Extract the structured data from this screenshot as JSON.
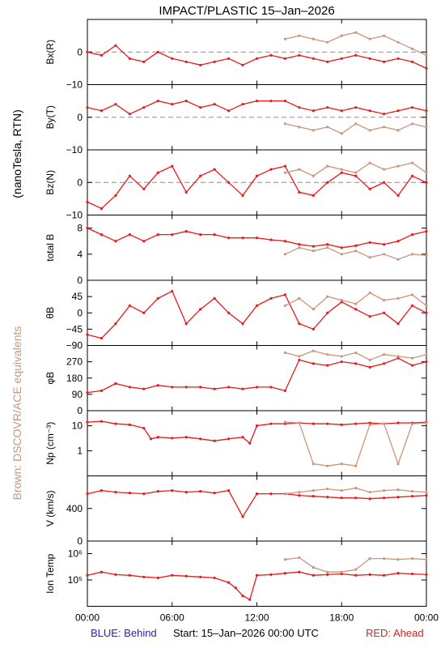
{
  "header": {
    "title": "IMPACT/PLASTIC   15–Jan–2026"
  },
  "side_labels": {
    "units": "(nanoTesla, RTN)",
    "equivalents": "Brown: DSCOVR/ACE equivalents"
  },
  "footer": {
    "behind": "BLUE: Behind",
    "start": "Start: 15–Jan–2026 00:00 UTC",
    "ahead": "RED: Ahead"
  },
  "colors": {
    "ahead": "#e8191c",
    "equivalent": "#c8967d",
    "behind": "#1f1fc8",
    "reference_line": "#8c8c8c"
  },
  "chart_data": {
    "type": "scatter",
    "x_axis": {
      "label": "",
      "range_hours": [
        0,
        24
      ],
      "tick_hours": [
        0,
        6,
        12,
        18,
        24
      ],
      "tick_labels": [
        "00:00",
        "06:00",
        "12:00",
        "18:00",
        "00:00"
      ]
    },
    "panels": [
      {
        "name": "Bx",
        "ylabel": "Bx(R)",
        "ylim": [
          -10,
          10
        ],
        "scale": "linear",
        "ticks": [
          -10,
          0
        ],
        "tick_labels": [
          "−10",
          "0"
        ],
        "zero_line": true,
        "series": [
          {
            "color_key": "ahead",
            "x": [
              0,
              1,
              2,
              3,
              4,
              5,
              6,
              7,
              8,
              9,
              10,
              11,
              12,
              13,
              14,
              15,
              16,
              17,
              18,
              19,
              20,
              21,
              22,
              23,
              24
            ],
            "y": [
              0,
              -1,
              2,
              -2,
              -3,
              0,
              -2,
              -3,
              -4,
              -3,
              -2,
              -4,
              -2,
              -1,
              -2,
              -1,
              -2,
              -3,
              -2,
              -1,
              -2,
              -3,
              -2,
              -3,
              -5
            ]
          },
          {
            "color_key": "equivalent",
            "x": [
              14,
              15,
              16,
              17,
              18,
              19,
              20,
              21,
              22,
              23,
              24
            ],
            "y": [
              4,
              5,
              4,
              3,
              5,
              6,
              4,
              5,
              3,
              1,
              -1
            ]
          }
        ]
      },
      {
        "name": "By",
        "ylabel": "By(T)",
        "ylim": [
          -10,
          10
        ],
        "scale": "linear",
        "ticks": [
          -10,
          0
        ],
        "tick_labels": [
          "−10",
          "0"
        ],
        "zero_line": true,
        "series": [
          {
            "color_key": "ahead",
            "x": [
              0,
              1,
              2,
              3,
              4,
              5,
              6,
              7,
              8,
              9,
              10,
              11,
              12,
              13,
              14,
              15,
              16,
              17,
              18,
              19,
              20,
              21,
              22,
              23,
              24
            ],
            "y": [
              3,
              2,
              4,
              1,
              3,
              5,
              4,
              5,
              3,
              4,
              2,
              4,
              5,
              5,
              5,
              3,
              2,
              3,
              2,
              3,
              2,
              1,
              2,
              3,
              2
            ]
          },
          {
            "color_key": "equivalent",
            "x": [
              14,
              15,
              16,
              17,
              18,
              19,
              20,
              21,
              22,
              23,
              24
            ],
            "y": [
              -2,
              -3,
              -4,
              -3,
              -5,
              -2,
              -4,
              -3,
              -4,
              -2,
              -3
            ]
          }
        ]
      },
      {
        "name": "Bz",
        "ylabel": "Bz(N)",
        "ylim": [
          -10,
          10
        ],
        "scale": "linear",
        "ticks": [
          -10,
          0
        ],
        "tick_labels": [
          "−10",
          "0"
        ],
        "zero_line": true,
        "series": [
          {
            "color_key": "ahead",
            "x": [
              0,
              1,
              2,
              3,
              4,
              5,
              6,
              7,
              8,
              9,
              10,
              11,
              12,
              13,
              14,
              15,
              16,
              17,
              18,
              19,
              20,
              21,
              22,
              23,
              24
            ],
            "y": [
              -6,
              -8,
              -4,
              2,
              -2,
              3,
              5,
              -3,
              2,
              4,
              0,
              -4,
              2,
              4,
              5,
              -3,
              -4,
              0,
              3,
              2,
              -2,
              0,
              -4,
              2,
              0
            ]
          },
          {
            "color_key": "equivalent",
            "x": [
              14,
              15,
              16,
              17,
              18,
              19,
              20,
              21,
              22,
              23,
              24
            ],
            "y": [
              3,
              4,
              2,
              5,
              4,
              3,
              6,
              4,
              5,
              6,
              3
            ]
          }
        ]
      },
      {
        "name": "totalB",
        "ylabel": "total B",
        "ylim": [
          0,
          10
        ],
        "scale": "linear",
        "ticks": [
          0,
          4,
          8
        ],
        "tick_labels": [
          "0",
          "4",
          "8"
        ],
        "zero_line": false,
        "series": [
          {
            "color_key": "ahead",
            "x": [
              0,
              1,
              2,
              3,
              4,
              5,
              6,
              7,
              8,
              9,
              10,
              11,
              12,
              13,
              14,
              15,
              16,
              17,
              18,
              19,
              20,
              21,
              22,
              23,
              24
            ],
            "y": [
              8,
              7,
              6,
              7,
              6,
              7,
              7,
              7.5,
              7,
              7,
              6.5,
              6.5,
              6.5,
              6.2,
              6,
              5.5,
              5.2,
              5.5,
              5,
              5.3,
              5.8,
              5.5,
              6,
              7,
              7.5
            ]
          },
          {
            "color_key": "equivalent",
            "x": [
              14,
              15,
              16,
              17,
              18,
              19,
              20,
              21,
              22,
              23,
              24
            ],
            "y": [
              4,
              5,
              4.5,
              5,
              4,
              4.5,
              3.5,
              4,
              3.2,
              4,
              3.8
            ]
          }
        ]
      },
      {
        "name": "thetaB",
        "ylabel": "θB",
        "ylim": [
          -90,
          90
        ],
        "scale": "linear",
        "ticks": [
          -90,
          -45,
          0,
          45
        ],
        "tick_labels": [
          "−90",
          "−45",
          "0",
          "45"
        ],
        "zero_line": false,
        "series": [
          {
            "color_key": "ahead",
            "x": [
              0,
              1,
              2,
              3,
              4,
              5,
              6,
              7,
              8,
              9,
              10,
              11,
              12,
              13,
              14,
              15,
              16,
              17,
              18,
              19,
              20,
              21,
              22,
              23,
              24
            ],
            "y": [
              -60,
              -70,
              -30,
              20,
              0,
              40,
              60,
              -30,
              10,
              40,
              0,
              -30,
              20,
              40,
              50,
              -30,
              -45,
              0,
              30,
              10,
              -10,
              0,
              -30,
              20,
              0
            ]
          },
          {
            "color_key": "equivalent",
            "x": [
              14,
              15,
              16,
              17,
              18,
              19,
              20,
              21,
              22,
              23,
              24
            ],
            "y": [
              20,
              40,
              10,
              45,
              35,
              25,
              55,
              35,
              40,
              50,
              20
            ]
          }
        ]
      },
      {
        "name": "phiB",
        "ylabel": "φB",
        "ylim": [
          0,
          360
        ],
        "scale": "linear",
        "ticks": [
          0,
          90,
          180,
          270
        ],
        "tick_labels": [
          "0",
          "90",
          "180",
          "270"
        ],
        "zero_line": false,
        "series": [
          {
            "color_key": "ahead",
            "x": [
              0,
              1,
              2,
              3,
              4,
              5,
              6,
              7,
              8,
              9,
              10,
              11,
              12,
              13,
              14,
              15,
              16,
              17,
              18,
              19,
              20,
              21,
              22,
              23,
              24
            ],
            "y": [
              100,
              110,
              150,
              130,
              120,
              140,
              130,
              130,
              130,
              120,
              130,
              120,
              130,
              130,
              110,
              280,
              260,
              250,
              270,
              260,
              240,
              260,
              290,
              250,
              270
            ]
          },
          {
            "color_key": "equivalent",
            "x": [
              14,
              15,
              16,
              17,
              18,
              19,
              20,
              21,
              22,
              23,
              24
            ],
            "y": [
              320,
              300,
              330,
              310,
              300,
              320,
              280,
              310,
              300,
              290,
              310
            ]
          }
        ]
      },
      {
        "name": "Np",
        "ylabel": "Np (cm⁻³)",
        "ylim": [
          0.1,
          40
        ],
        "scale": "log",
        "ticks": [
          1,
          10
        ],
        "tick_labels": [
          "1",
          "10"
        ],
        "zero_line": false,
        "series": [
          {
            "color_key": "ahead",
            "x": [
              0,
              1,
              2,
              3,
              4,
              4.5,
              5,
              6,
              7,
              8,
              9,
              10,
              11,
              11.5,
              12,
              13,
              14,
              15,
              16,
              17,
              18,
              19,
              20,
              21,
              22,
              23,
              24
            ],
            "y": [
              14,
              15,
              12,
              11,
              8,
              3,
              3.5,
              3.2,
              3.5,
              3,
              2.5,
              3,
              3.5,
              2,
              10,
              12,
              12,
              13,
              12,
              12,
              11,
              12,
              13,
              12,
              13,
              13,
              14
            ]
          },
          {
            "color_key": "equivalent",
            "x": [
              14,
              15,
              16,
              17,
              18,
              19,
              20,
              21,
              22,
              23,
              24
            ],
            "y": [
              14,
              13,
              0.3,
              0.25,
              0.3,
              0.25,
              11,
              12,
              0.3,
              12,
              13
            ]
          }
        ]
      },
      {
        "name": "V",
        "ylabel": "V (km/s)",
        "ylim": [
          0,
          800
        ],
        "scale": "linear",
        "ticks": [
          0,
          400
        ],
        "tick_labels": [
          "0",
          "400"
        ],
        "zero_line": false,
        "series": [
          {
            "color_key": "ahead",
            "x": [
              0,
              1,
              2,
              3,
              4,
              5,
              6,
              7,
              8,
              9,
              10,
              11,
              12,
              13,
              14,
              15,
              16,
              17,
              18,
              19,
              20,
              21,
              22,
              23,
              24
            ],
            "y": [
              580,
              620,
              600,
              590,
              580,
              610,
              620,
              600,
              610,
              590,
              620,
              300,
              580,
              580,
              580,
              560,
              550,
              540,
              530,
              530,
              520,
              530,
              540,
              550,
              560
            ]
          },
          {
            "color_key": "equivalent",
            "x": [
              14,
              15,
              16,
              17,
              18,
              19,
              20,
              21,
              22,
              23,
              24
            ],
            "y": [
              580,
              600,
              620,
              640,
              620,
              650,
              600,
              620,
              630,
              610,
              600
            ]
          }
        ]
      },
      {
        "name": "IonTemp",
        "ylabel": "Ion Temp",
        "ylim": [
          10000,
          3000000
        ],
        "scale": "log",
        "ticks": [
          100000,
          1000000
        ],
        "tick_labels": [
          "10⁵",
          "10⁶"
        ],
        "zero_line": false,
        "series": [
          {
            "color_key": "ahead",
            "x": [
              0,
              1,
              2,
              3,
              4,
              5,
              6,
              7,
              8,
              9,
              10,
              10.5,
              11,
              11.5,
              12,
              13,
              14,
              15,
              16,
              17,
              18,
              19,
              20,
              21,
              22,
              23,
              24
            ],
            "y": [
              150000,
              200000,
              160000,
              150000,
              130000,
              120000,
              150000,
              140000,
              130000,
              120000,
              80000,
              50000,
              25000,
              18000,
              150000,
              160000,
              180000,
              200000,
              150000,
              160000,
              170000,
              150000,
              160000,
              150000,
              180000,
              170000,
              160000
            ]
          },
          {
            "color_key": "equivalent",
            "x": [
              14,
              15,
              16,
              17,
              18,
              19,
              20,
              21,
              22,
              23,
              24
            ],
            "y": [
              600000,
              700000,
              300000,
              200000,
              200000,
              250000,
              650000,
              650000,
              600000,
              650000,
              600000
            ]
          }
        ]
      }
    ]
  }
}
